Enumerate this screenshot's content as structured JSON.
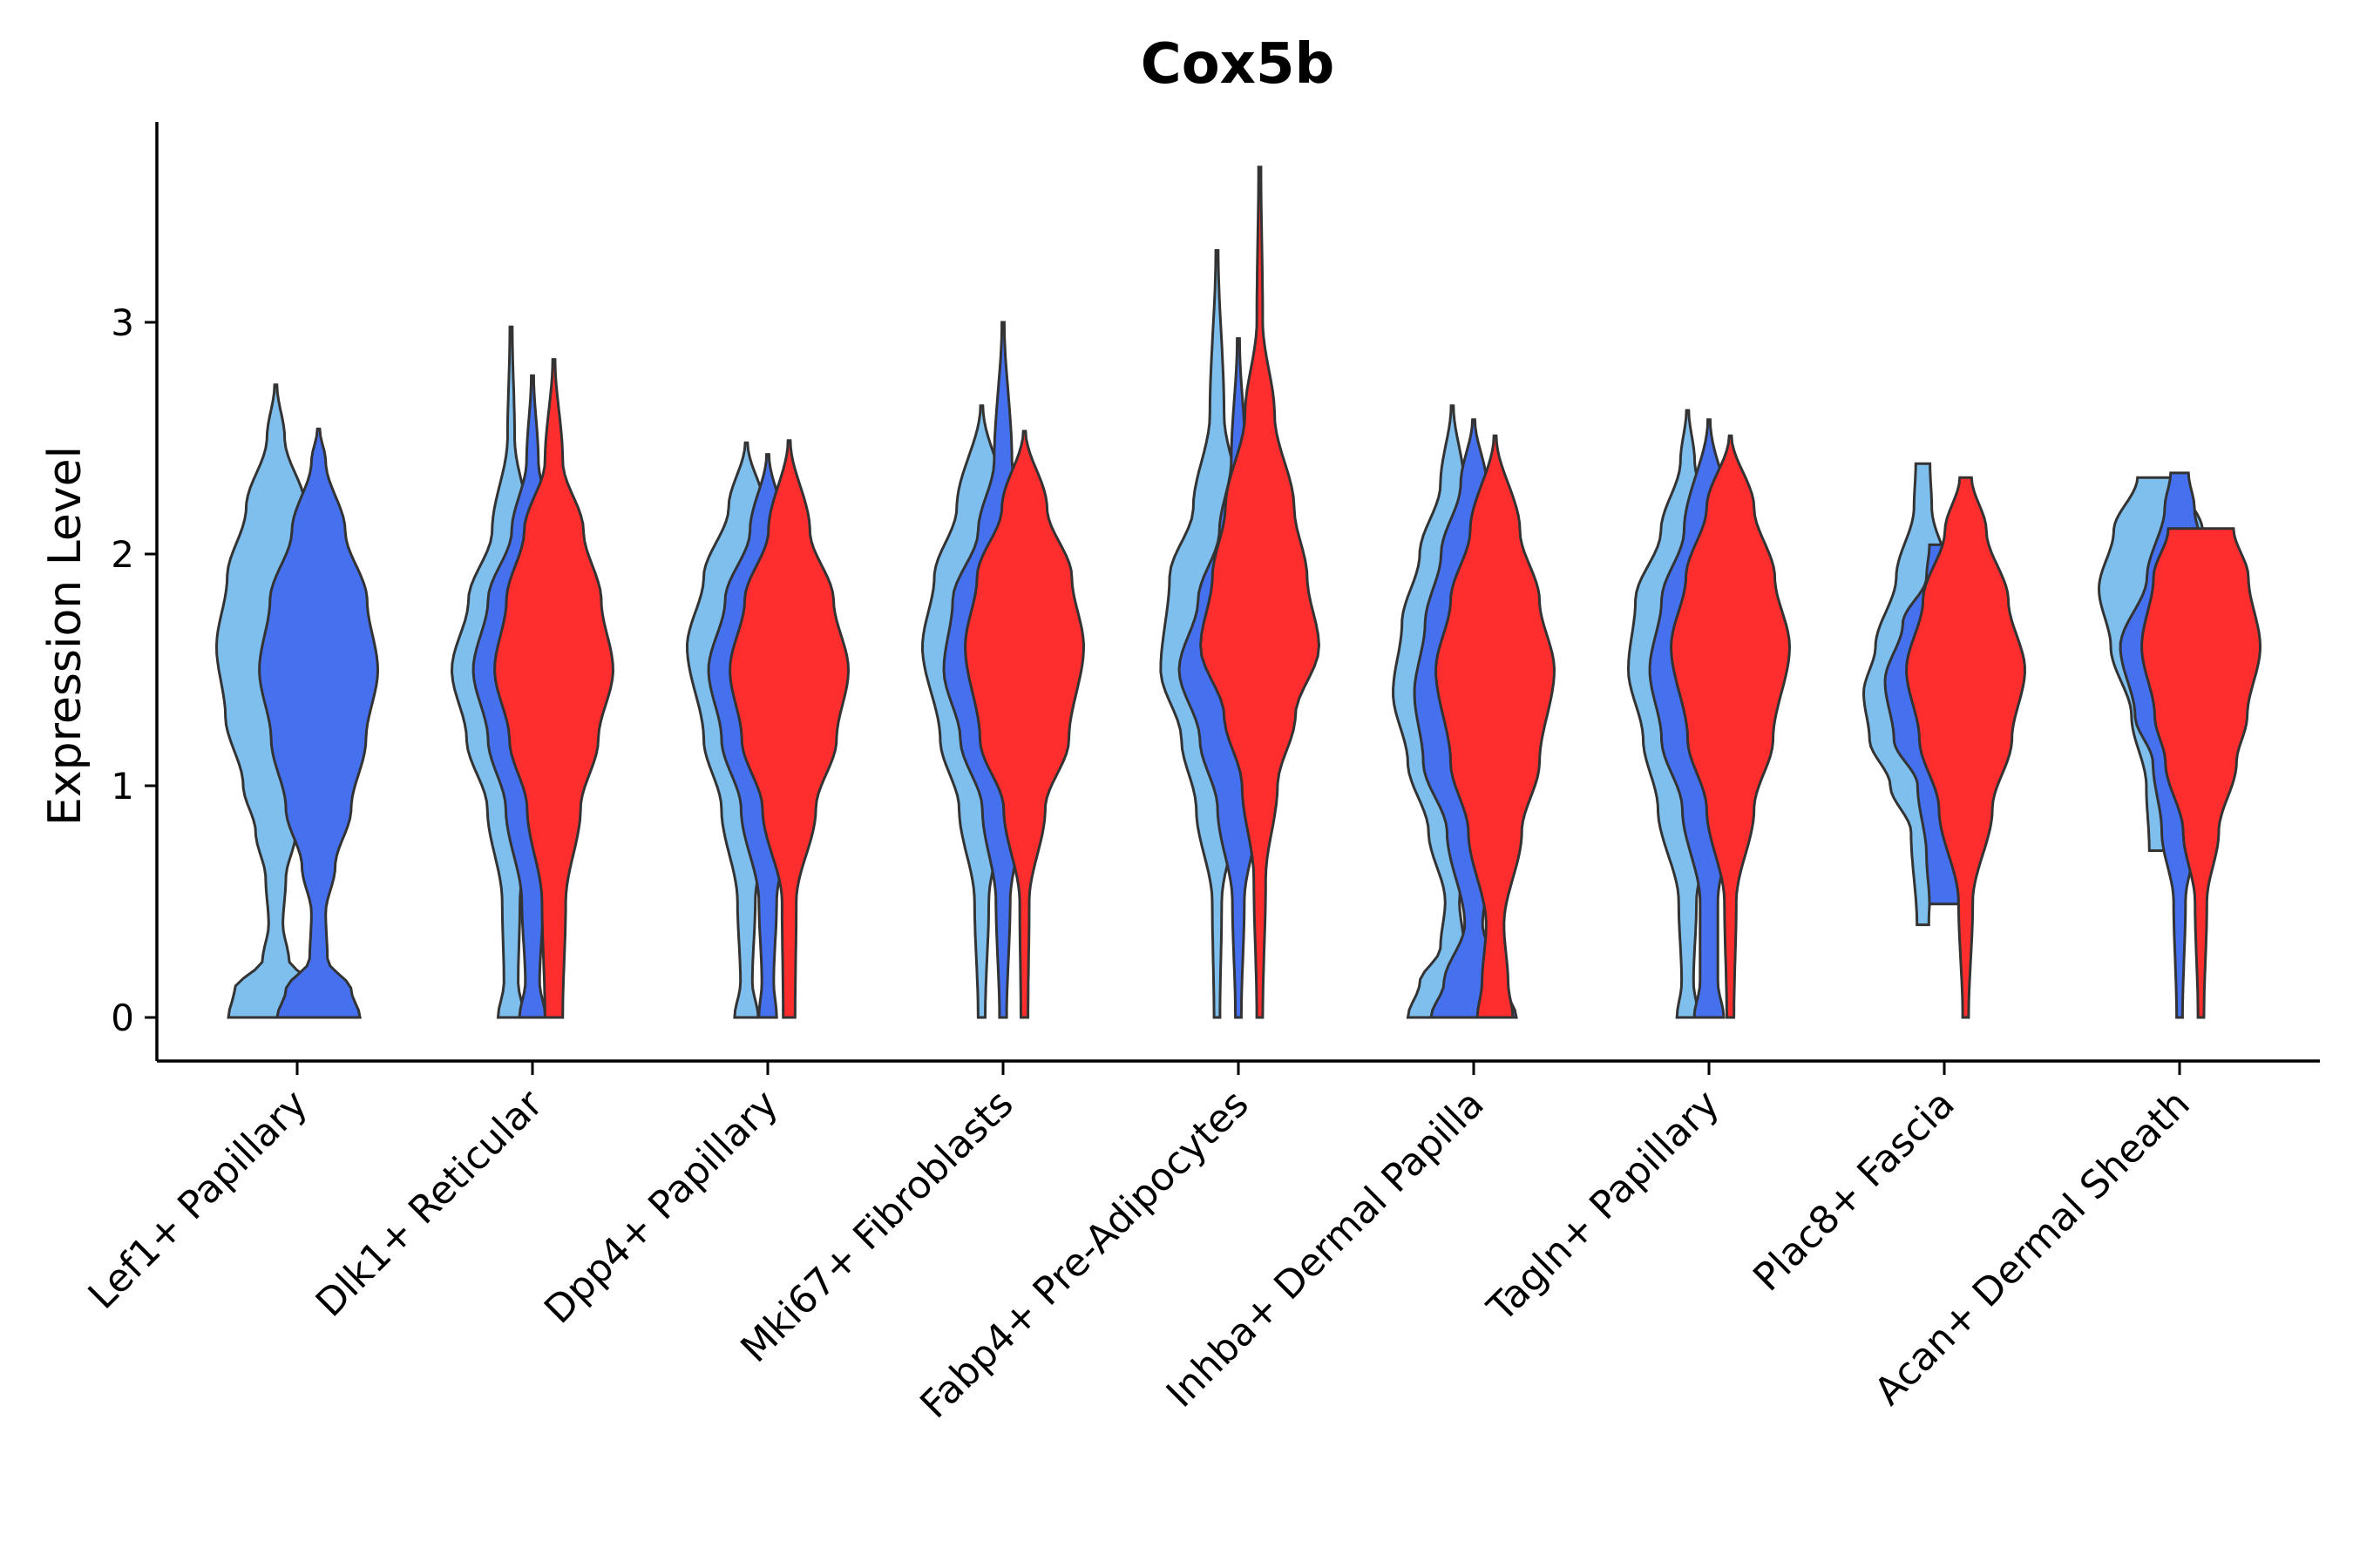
{
  "chart_data": {
    "type": "violin",
    "title": "Cox5b",
    "xlabel": "",
    "ylabel": "Expression Level",
    "ylim": [
      -0.18,
      3.86
    ],
    "yticks": [
      0,
      1,
      2,
      3
    ],
    "ytick_labels": [
      "0",
      "1",
      "2",
      "3"
    ],
    "categories": [
      "Lef1+ Papillary",
      "Dlk1+ Reticular",
      "Dpp4+ Papillary",
      "Mki67+ Fibroblasts",
      "Fabp4+ Pre-Adipocytes",
      "Inhba+ Dermal Papilla",
      "Tagln+ Papillary",
      "Plac8+ Fascia",
      "Acan+ Dermal Sheath"
    ],
    "series_colors": [
      "#7fbfee",
      "#4570ee",
      "#ff2e2e"
    ],
    "violins": [
      {
        "category": 0,
        "group": 0,
        "offset": -0.3,
        "color": "#7fbfee",
        "min": 0,
        "max": 2.73,
        "profile": [
          [
            0,
            0.8
          ],
          [
            0.12,
            0.7
          ],
          [
            0.25,
            0.22
          ],
          [
            0.4,
            0.12
          ],
          [
            0.6,
            0.17
          ],
          [
            0.8,
            0.34
          ],
          [
            1.0,
            0.55
          ],
          [
            1.3,
            0.85
          ],
          [
            1.6,
            1.0
          ],
          [
            1.9,
            0.82
          ],
          [
            2.2,
            0.5
          ],
          [
            2.5,
            0.15
          ],
          [
            2.73,
            0.02
          ]
        ]
      },
      {
        "category": 0,
        "group": 1,
        "offset": 0.3,
        "color": "#4570ee",
        "min": 0,
        "max": 2.54,
        "profile": [
          [
            0,
            0.7
          ],
          [
            0.12,
            0.55
          ],
          [
            0.25,
            0.15
          ],
          [
            0.45,
            0.12
          ],
          [
            0.65,
            0.28
          ],
          [
            0.9,
            0.55
          ],
          [
            1.2,
            0.8
          ],
          [
            1.5,
            1.0
          ],
          [
            1.8,
            0.82
          ],
          [
            2.1,
            0.45
          ],
          [
            2.4,
            0.12
          ],
          [
            2.54,
            0.02
          ]
        ]
      },
      {
        "category": 1,
        "group": 0,
        "offset": -0.3,
        "color": "#7fbfee",
        "min": 0,
        "max": 2.98,
        "profile": [
          [
            0,
            0.22
          ],
          [
            0.15,
            0.12
          ],
          [
            0.5,
            0.15
          ],
          [
            0.9,
            0.4
          ],
          [
            1.2,
            0.75
          ],
          [
            1.5,
            1.0
          ],
          [
            1.8,
            0.72
          ],
          [
            2.1,
            0.32
          ],
          [
            2.5,
            0.06
          ],
          [
            2.98,
            0.02
          ]
        ]
      },
      {
        "category": 1,
        "group": 1,
        "offset": 0.0,
        "color": "#4570ee",
        "min": 0,
        "max": 2.77,
        "profile": [
          [
            0,
            0.22
          ],
          [
            0.15,
            0.12
          ],
          [
            0.5,
            0.18
          ],
          [
            0.9,
            0.45
          ],
          [
            1.2,
            0.75
          ],
          [
            1.5,
            1.0
          ],
          [
            1.8,
            0.75
          ],
          [
            2.1,
            0.35
          ],
          [
            2.4,
            0.1
          ],
          [
            2.77,
            0.02
          ]
        ]
      },
      {
        "category": 1,
        "group": 2,
        "offset": 0.3,
        "color": "#ff2e2e",
        "min": 0,
        "max": 2.84,
        "profile": [
          [
            0,
            0.15
          ],
          [
            0.5,
            0.2
          ],
          [
            0.9,
            0.45
          ],
          [
            1.2,
            0.75
          ],
          [
            1.5,
            1.0
          ],
          [
            1.8,
            0.8
          ],
          [
            2.1,
            0.5
          ],
          [
            2.4,
            0.15
          ],
          [
            2.84,
            0.02
          ]
        ]
      },
      {
        "category": 2,
        "group": 0,
        "offset": -0.3,
        "color": "#7fbfee",
        "min": 0,
        "max": 2.48,
        "profile": [
          [
            0,
            0.2
          ],
          [
            0.15,
            0.1
          ],
          [
            0.5,
            0.15
          ],
          [
            0.9,
            0.42
          ],
          [
            1.2,
            0.72
          ],
          [
            1.6,
            1.0
          ],
          [
            1.9,
            0.72
          ],
          [
            2.2,
            0.3
          ],
          [
            2.48,
            0.02
          ]
        ]
      },
      {
        "category": 2,
        "group": 1,
        "offset": 0.0,
        "color": "#4570ee",
        "min": 0,
        "max": 2.43,
        "profile": [
          [
            0,
            0.15
          ],
          [
            0.15,
            0.1
          ],
          [
            0.5,
            0.15
          ],
          [
            0.9,
            0.45
          ],
          [
            1.2,
            0.78
          ],
          [
            1.5,
            1.0
          ],
          [
            1.8,
            0.72
          ],
          [
            2.1,
            0.3
          ],
          [
            2.43,
            0.02
          ]
        ]
      },
      {
        "category": 2,
        "group": 2,
        "offset": 0.3,
        "color": "#ff2e2e",
        "min": 0,
        "max": 2.49,
        "profile": [
          [
            0,
            0.1
          ],
          [
            0.5,
            0.12
          ],
          [
            0.9,
            0.45
          ],
          [
            1.2,
            0.8
          ],
          [
            1.5,
            1.0
          ],
          [
            1.8,
            0.75
          ],
          [
            2.1,
            0.35
          ],
          [
            2.49,
            0.02
          ]
        ]
      },
      {
        "category": 3,
        "group": 0,
        "offset": -0.3,
        "color": "#7fbfee",
        "min": 0,
        "max": 2.64,
        "profile": [
          [
            0,
            0.06
          ],
          [
            0.5,
            0.12
          ],
          [
            0.9,
            0.38
          ],
          [
            1.2,
            0.7
          ],
          [
            1.6,
            1.0
          ],
          [
            1.9,
            0.8
          ],
          [
            2.2,
            0.42
          ],
          [
            2.64,
            0.02
          ]
        ]
      },
      {
        "category": 3,
        "group": 1,
        "offset": 0.0,
        "color": "#4570ee",
        "min": 0,
        "max": 3.0,
        "profile": [
          [
            0,
            0.06
          ],
          [
            0.5,
            0.12
          ],
          [
            0.9,
            0.35
          ],
          [
            1.2,
            0.72
          ],
          [
            1.5,
            1.0
          ],
          [
            1.8,
            0.85
          ],
          [
            2.1,
            0.42
          ],
          [
            2.4,
            0.15
          ],
          [
            3.0,
            0.02
          ]
        ]
      },
      {
        "category": 3,
        "group": 2,
        "offset": 0.3,
        "color": "#ff2e2e",
        "min": 0,
        "max": 2.53,
        "profile": [
          [
            0,
            0.06
          ],
          [
            0.5,
            0.08
          ],
          [
            0.9,
            0.35
          ],
          [
            1.2,
            0.75
          ],
          [
            1.6,
            1.0
          ],
          [
            1.9,
            0.8
          ],
          [
            2.2,
            0.38
          ],
          [
            2.53,
            0.02
          ]
        ]
      },
      {
        "category": 4,
        "group": 0,
        "offset": -0.3,
        "color": "#7fbfee",
        "min": 0,
        "max": 3.31,
        "profile": [
          [
            0,
            0.05
          ],
          [
            0.5,
            0.08
          ],
          [
            0.9,
            0.35
          ],
          [
            1.2,
            0.6
          ],
          [
            1.5,
            0.95
          ],
          [
            1.9,
            0.8
          ],
          [
            2.2,
            0.4
          ],
          [
            2.6,
            0.12
          ],
          [
            3.31,
            0.02
          ]
        ]
      },
      {
        "category": 4,
        "group": 1,
        "offset": 0.0,
        "color": "#4570ee",
        "min": 0,
        "max": 2.93,
        "profile": [
          [
            0,
            0.05
          ],
          [
            0.5,
            0.1
          ],
          [
            0.9,
            0.35
          ],
          [
            1.2,
            0.65
          ],
          [
            1.5,
            1.0
          ],
          [
            1.8,
            0.68
          ],
          [
            2.1,
            0.32
          ],
          [
            2.4,
            0.12
          ],
          [
            2.93,
            0.02
          ]
        ]
      },
      {
        "category": 4,
        "group": 2,
        "offset": 0.3,
        "color": "#ff2e2e",
        "min": 0,
        "max": 3.67,
        "profile": [
          [
            0,
            0.05
          ],
          [
            0.6,
            0.1
          ],
          [
            1.0,
            0.3
          ],
          [
            1.3,
            0.6
          ],
          [
            1.6,
            1.0
          ],
          [
            1.9,
            0.8
          ],
          [
            2.2,
            0.58
          ],
          [
            2.6,
            0.25
          ],
          [
            3.0,
            0.05
          ],
          [
            3.67,
            0.02
          ]
        ]
      },
      {
        "category": 5,
        "group": 0,
        "offset": -0.3,
        "color": "#7fbfee",
        "min": 0,
        "max": 2.64,
        "profile": [
          [
            0,
            0.75
          ],
          [
            0.15,
            0.55
          ],
          [
            0.3,
            0.2
          ],
          [
            0.5,
            0.12
          ],
          [
            0.8,
            0.4
          ],
          [
            1.1,
            0.75
          ],
          [
            1.4,
            1.0
          ],
          [
            1.7,
            0.85
          ],
          [
            2.0,
            0.55
          ],
          [
            2.3,
            0.2
          ],
          [
            2.64,
            0.02
          ]
        ]
      },
      {
        "category": 5,
        "group": 1,
        "offset": 0.0,
        "color": "#4570ee",
        "min": 0,
        "max": 2.58,
        "profile": [
          [
            0,
            0.72
          ],
          [
            0.15,
            0.5
          ],
          [
            0.4,
            0.15
          ],
          [
            0.8,
            0.45
          ],
          [
            1.1,
            0.85
          ],
          [
            1.4,
            1.0
          ],
          [
            1.7,
            0.82
          ],
          [
            2.0,
            0.55
          ],
          [
            2.3,
            0.22
          ],
          [
            2.58,
            0.02
          ]
        ]
      },
      {
        "category": 5,
        "group": 2,
        "offset": 0.3,
        "color": "#ff2e2e",
        "min": 0,
        "max": 2.51,
        "profile": [
          [
            0,
            0.3
          ],
          [
            0.15,
            0.22
          ],
          [
            0.4,
            0.15
          ],
          [
            0.8,
            0.45
          ],
          [
            1.1,
            0.75
          ],
          [
            1.5,
            1.0
          ],
          [
            1.8,
            0.75
          ],
          [
            2.1,
            0.42
          ],
          [
            2.51,
            0.02
          ]
        ]
      },
      {
        "category": 6,
        "group": 0,
        "offset": -0.3,
        "color": "#7fbfee",
        "min": 0,
        "max": 2.62,
        "profile": [
          [
            0,
            0.18
          ],
          [
            0.15,
            0.1
          ],
          [
            0.5,
            0.15
          ],
          [
            0.9,
            0.5
          ],
          [
            1.2,
            0.75
          ],
          [
            1.5,
            1.0
          ],
          [
            1.8,
            0.88
          ],
          [
            2.1,
            0.45
          ],
          [
            2.4,
            0.12
          ],
          [
            2.62,
            0.02
          ]
        ]
      },
      {
        "category": 6,
        "group": 1,
        "offset": 0.0,
        "color": "#4570ee",
        "min": 0,
        "max": 2.58,
        "profile": [
          [
            0,
            0.25
          ],
          [
            0.15,
            0.15
          ],
          [
            0.5,
            0.15
          ],
          [
            0.9,
            0.45
          ],
          [
            1.2,
            0.8
          ],
          [
            1.5,
            1.0
          ],
          [
            1.8,
            0.8
          ],
          [
            2.1,
            0.42
          ],
          [
            2.58,
            0.02
          ]
        ]
      },
      {
        "category": 6,
        "group": 2,
        "offset": 0.3,
        "color": "#ff2e2e",
        "min": 0,
        "max": 2.51,
        "profile": [
          [
            0,
            0.06
          ],
          [
            0.5,
            0.1
          ],
          [
            0.9,
            0.4
          ],
          [
            1.2,
            0.72
          ],
          [
            1.6,
            1.0
          ],
          [
            1.9,
            0.75
          ],
          [
            2.2,
            0.4
          ],
          [
            2.51,
            0.02
          ]
        ]
      },
      {
        "category": 7,
        "group": 0,
        "offset": -0.3,
        "color": "#7fbfee",
        "min": 0.4,
        "max": 2.39,
        "profile": [
          [
            0.4,
            0.1
          ],
          [
            0.8,
            0.2
          ],
          [
            1.0,
            0.55
          ],
          [
            1.2,
            0.9
          ],
          [
            1.4,
            1.0
          ],
          [
            1.6,
            0.8
          ],
          [
            1.9,
            0.45
          ],
          [
            2.2,
            0.15
          ],
          [
            2.39,
            0.12
          ]
        ]
      },
      {
        "category": 7,
        "group": 1,
        "offset": 0.0,
        "color": "#4570ee",
        "min": 0.49,
        "max": 2.04,
        "profile": [
          [
            0.49,
            0.25
          ],
          [
            0.7,
            0.3
          ],
          [
            1.0,
            0.45
          ],
          [
            1.2,
            0.85
          ],
          [
            1.45,
            1.0
          ],
          [
            1.7,
            0.7
          ],
          [
            1.9,
            0.3
          ],
          [
            2.04,
            0.25
          ]
        ]
      },
      {
        "category": 7,
        "group": 2,
        "offset": 0.3,
        "color": "#ff2e2e",
        "min": 0,
        "max": 2.33,
        "profile": [
          [
            0,
            0.05
          ],
          [
            0.5,
            0.12
          ],
          [
            0.9,
            0.45
          ],
          [
            1.2,
            0.78
          ],
          [
            1.5,
            1.0
          ],
          [
            1.8,
            0.72
          ],
          [
            2.1,
            0.35
          ],
          [
            2.33,
            0.1
          ]
        ]
      },
      {
        "category": 8,
        "group": 0,
        "offset": -0.3,
        "color": "#7fbfee",
        "min": 0.72,
        "max": 2.33,
        "profile": [
          [
            0.72,
            0.15
          ],
          [
            1.0,
            0.2
          ],
          [
            1.3,
            0.45
          ],
          [
            1.6,
            0.8
          ],
          [
            1.85,
            1.0
          ],
          [
            2.1,
            0.75
          ],
          [
            2.33,
            0.35
          ]
        ]
      },
      {
        "category": 8,
        "group": 1,
        "offset": 0.0,
        "color": "#4570ee",
        "min": 0,
        "max": 2.35,
        "profile": [
          [
            0,
            0.05
          ],
          [
            0.5,
            0.1
          ],
          [
            0.8,
            0.3
          ],
          [
            1.1,
            0.45
          ],
          [
            1.3,
            0.75
          ],
          [
            1.6,
            1.0
          ],
          [
            1.9,
            0.55
          ],
          [
            2.2,
            0.25
          ],
          [
            2.35,
            0.15
          ]
        ]
      },
      {
        "category": 8,
        "group": 2,
        "offset": 0.3,
        "color": "#ff2e2e",
        "min": 0,
        "max": 2.11,
        "profile": [
          [
            0,
            0.05
          ],
          [
            0.5,
            0.1
          ],
          [
            0.8,
            0.3
          ],
          [
            1.1,
            0.6
          ],
          [
            1.3,
            0.78
          ],
          [
            1.6,
            1.0
          ],
          [
            1.9,
            0.8
          ],
          [
            2.11,
            0.55
          ]
        ]
      }
    ]
  }
}
